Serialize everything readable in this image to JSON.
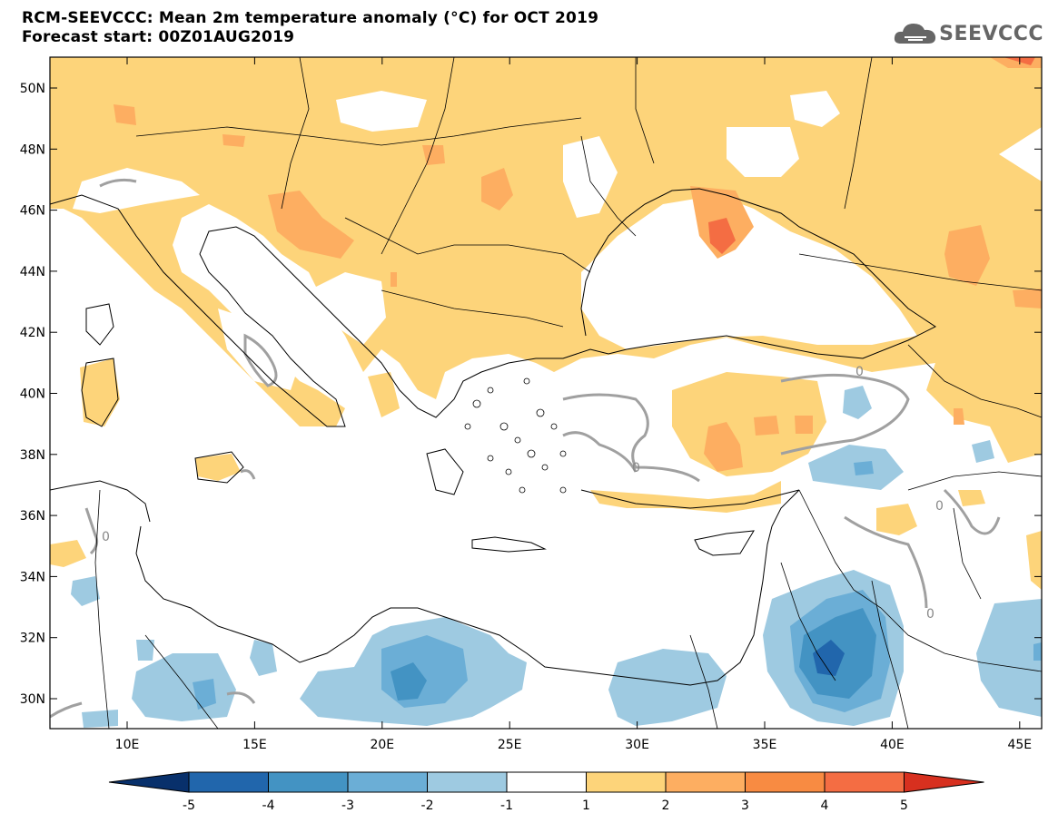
{
  "header": {
    "title_line1": "RCM-SEEVCCC: Mean 2m temperature anomaly (°C) for OCT 2019",
    "title_line2": "Forecast start: 00Z01AUG2019",
    "logo_text": "SEEVCCC"
  },
  "axes": {
    "lat_labels": [
      "50N",
      "48N",
      "46N",
      "44N",
      "42N",
      "40N",
      "38N",
      "36N",
      "34N",
      "32N",
      "30N"
    ],
    "lon_labels": [
      "10E",
      "15E",
      "20E",
      "25E",
      "30E",
      "35E",
      "40E",
      "45E"
    ]
  },
  "contour_labels": [
    "0",
    "0",
    "0",
    "0",
    "0"
  ],
  "colorbar": {
    "ticks": [
      "-5",
      "-4",
      "-3",
      "-2",
      "-1",
      "1",
      "2",
      "3",
      "4",
      "5"
    ],
    "colors": [
      "#08306b",
      "#2166ac",
      "#4393c3",
      "#6baed6",
      "#9ecae1",
      "#ffffff",
      "#fdd47a",
      "#fdae61",
      "#f88b42",
      "#f46d43",
      "#d7301f"
    ]
  },
  "map_colors": {
    "warm1": "#fdd47a",
    "warm2": "#fdae61",
    "warm3": "#f88b42",
    "warm4": "#f46d43",
    "cool1": "#9ecae1",
    "cool2": "#6baed6",
    "cool3": "#4393c3",
    "cool4": "#2166ac",
    "contour": "#a0a0a0"
  }
}
